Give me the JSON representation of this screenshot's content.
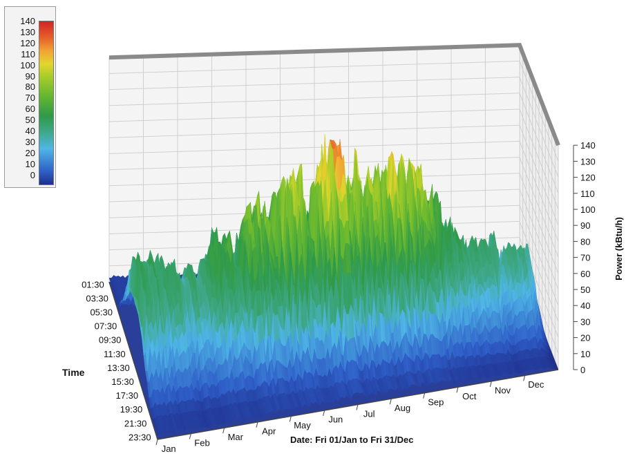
{
  "chart_data": {
    "type": "surface3d",
    "title": "",
    "xlabel": "Date: Fri 01/Jan to Fri 31/Dec",
    "ylabel": "Time",
    "zlabel": "Power (kBtu/h)",
    "zlim": [
      0,
      140
    ],
    "grid": true,
    "legend_position": "top-left",
    "months": [
      "Jan",
      "Feb",
      "Mar",
      "Apr",
      "May",
      "Jun",
      "Jul",
      "Aug",
      "Sep",
      "Oct",
      "Nov",
      "Dec"
    ],
    "times": [
      "01:30",
      "03:30",
      "05:30",
      "07:30",
      "09:30",
      "11:30",
      "13:30",
      "15:30",
      "17:30",
      "19:30",
      "21:30",
      "23:30"
    ],
    "z_ticks": [
      0,
      10,
      20,
      30,
      40,
      50,
      60,
      70,
      80,
      90,
      100,
      110,
      120,
      130,
      140
    ],
    "legend_ticks": [
      140,
      130,
      120,
      110,
      100,
      90,
      80,
      70,
      60,
      50,
      40,
      30,
      20,
      10,
      0
    ],
    "monthly_peak_power": [
      72,
      60,
      88,
      104,
      115,
      138,
      126,
      122,
      118,
      70,
      62,
      55
    ],
    "colors": {
      "0": "#1f2f8c",
      "10": "#2f5fc8",
      "30": "#4fb6e6",
      "40": "#3fa88a",
      "60": "#2f9a48",
      "80": "#68b830",
      "95": "#a7cc2a",
      "105": "#e3d52e",
      "115": "#f2a334",
      "125": "#e6602a",
      "140": "#d22424"
    }
  }
}
